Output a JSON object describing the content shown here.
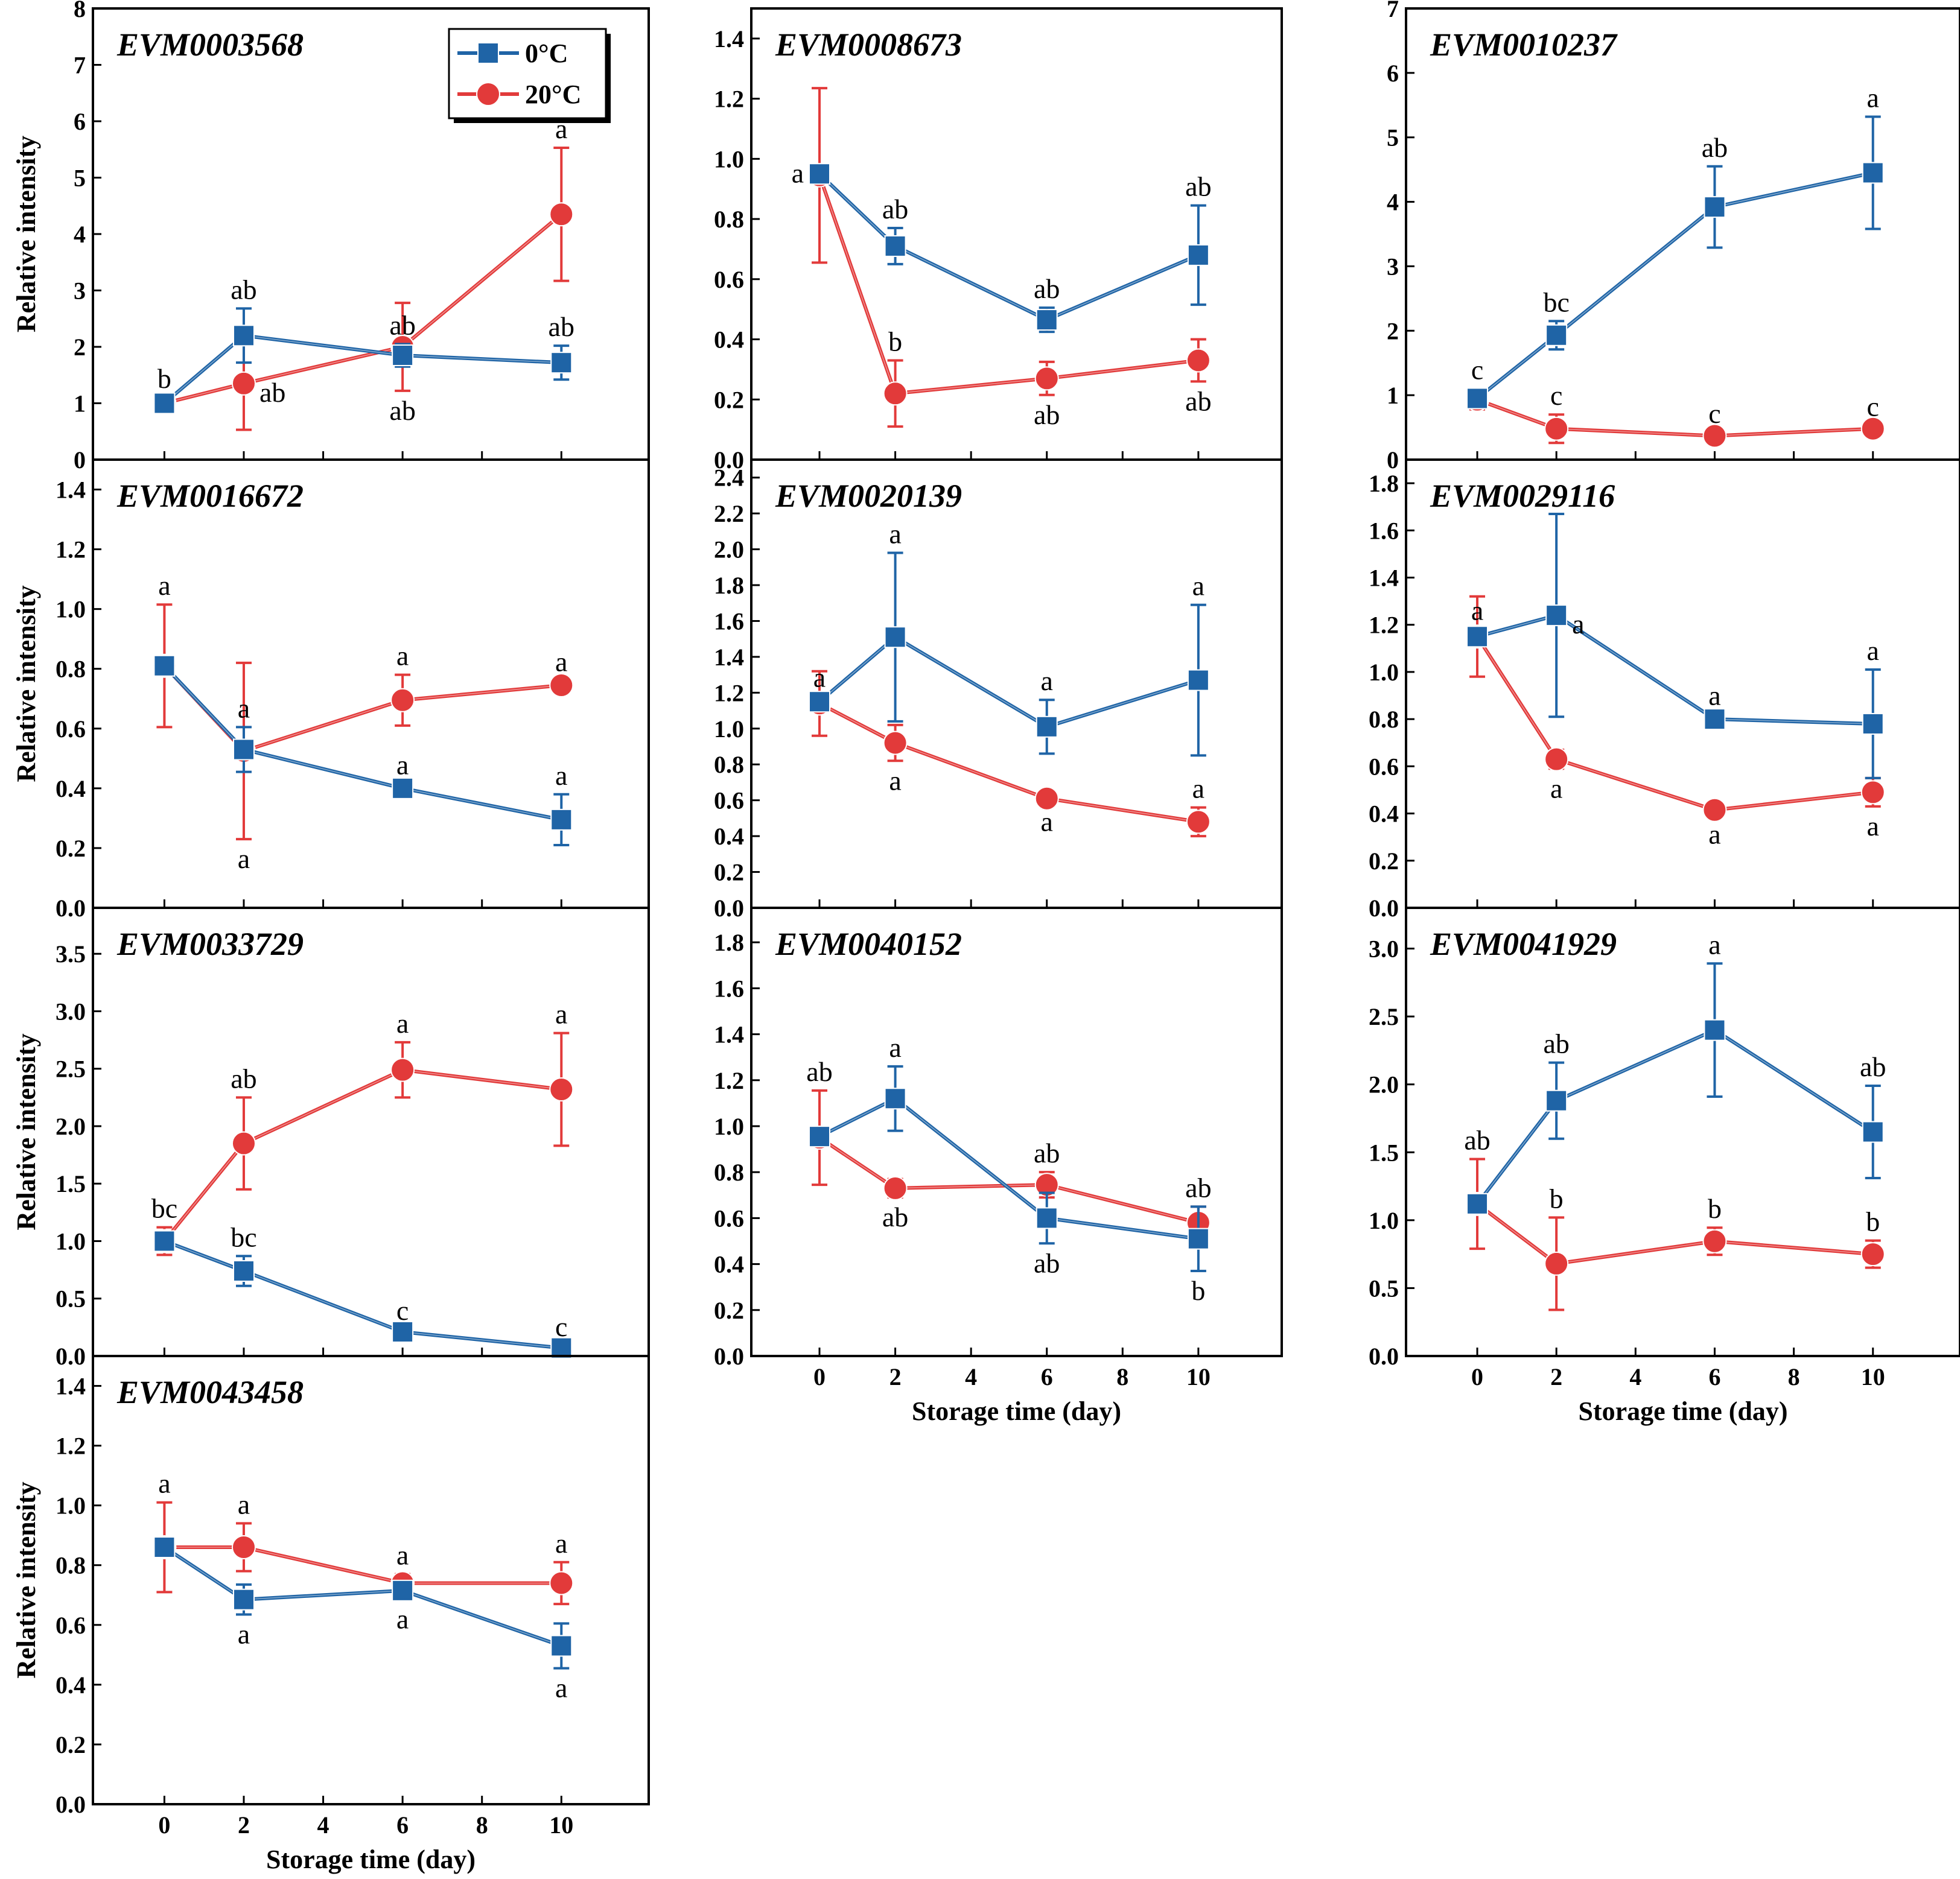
{
  "figure": {
    "xlabel": "Storage time (day)",
    "ylabel": "Relative intensity",
    "x_ticks": [
      0,
      2,
      4,
      6,
      8,
      10
    ],
    "x_tick_labels": [
      "0",
      "2",
      "4",
      "6",
      "8",
      "10"
    ],
    "x": [
      0,
      2,
      6,
      10
    ],
    "legend": [
      {
        "name": "0°C",
        "color": "#1f64a6",
        "marker": "square"
      },
      {
        "name": "20°C",
        "color": "#e23a3a",
        "marker": "circle"
      }
    ],
    "colors": {
      "s0": "#1f64a6",
      "s20": "#e23a3a",
      "axis": "#000000"
    }
  },
  "chart_data": [
    {
      "type": "line",
      "title": "EVM0003568",
      "xlabel": "",
      "ylabel": "Relative intensity",
      "x": [
        0,
        2,
        6,
        10
      ],
      "ylim": [
        0,
        8
      ],
      "yticks": [
        0,
        1,
        2,
        3,
        4,
        5,
        6,
        7,
        8
      ],
      "ytick_labels": [
        "0",
        "1",
        "2",
        "3",
        "4",
        "5",
        "6",
        "7",
        "8"
      ],
      "series": [
        {
          "name": "0°C",
          "values": [
            1.0,
            2.2,
            1.85,
            1.72
          ],
          "errors": [
            0.1,
            0.48,
            0.2,
            0.3
          ],
          "labels": [
            "b",
            "ab",
            "ab",
            "ab"
          ],
          "label_pos": [
            "above",
            "above",
            "above",
            "above"
          ]
        },
        {
          "name": "20°C",
          "values": [
            1.0,
            1.35,
            2.0,
            4.35
          ],
          "errors": [
            0.1,
            0.82,
            0.78,
            1.18
          ],
          "labels": [
            "",
            "ab",
            "ab",
            "a"
          ],
          "label_pos": [
            "above",
            "right",
            "below",
            "above"
          ]
        }
      ]
    },
    {
      "type": "line",
      "title": "EVM0008673",
      "xlabel": "",
      "ylabel": "",
      "x": [
        0,
        2,
        6,
        10
      ],
      "ylim": [
        0,
        1.5
      ],
      "yticks": [
        0,
        0.2,
        0.4,
        0.6,
        0.8,
        1.0,
        1.2,
        1.4
      ],
      "ytick_labels": [
        "0.0",
        "0.2",
        "0.4",
        "0.6",
        "0.8",
        "1.0",
        "1.2",
        "1.4"
      ],
      "series": [
        {
          "name": "0°C",
          "values": [
            0.95,
            0.71,
            0.465,
            0.68
          ],
          "errors": [
            0.02,
            0.06,
            0.04,
            0.165
          ],
          "labels": [
            "a",
            "ab",
            "ab",
            "ab"
          ],
          "label_pos": [
            "left",
            "above",
            "above",
            "above"
          ]
        },
        {
          "name": "20°C",
          "values": [
            0.945,
            0.22,
            0.27,
            0.33
          ],
          "errors": [
            0.29,
            0.11,
            0.055,
            0.07
          ],
          "labels": [
            "",
            "b",
            "ab",
            "ab"
          ],
          "label_pos": [
            "above",
            "above",
            "below",
            "below"
          ]
        }
      ]
    },
    {
      "type": "line",
      "title": "EVM0010237",
      "xlabel": "",
      "ylabel": "",
      "x": [
        0,
        2,
        6,
        10
      ],
      "ylim": [
        0,
        7
      ],
      "yticks": [
        0,
        1,
        2,
        3,
        4,
        5,
        6,
        7
      ],
      "ytick_labels": [
        "0",
        "1",
        "2",
        "3",
        "4",
        "5",
        "6",
        "7"
      ],
      "series": [
        {
          "name": "0°C",
          "values": [
            0.95,
            1.93,
            3.92,
            4.45
          ],
          "errors": [
            0.15,
            0.22,
            0.63,
            0.87
          ],
          "labels": [
            "c",
            "bc",
            "ab",
            "a"
          ],
          "label_pos": [
            "above",
            "above",
            "above",
            "above"
          ]
        },
        {
          "name": "20°C",
          "values": [
            0.93,
            0.48,
            0.37,
            0.48
          ],
          "errors": [
            0.15,
            0.22,
            0.05,
            0.05
          ],
          "labels": [
            "",
            "c",
            "c",
            "c"
          ],
          "label_pos": [
            "above",
            "above",
            "above",
            "above"
          ]
        }
      ]
    },
    {
      "type": "line",
      "title": "EVM0016672",
      "xlabel": "",
      "ylabel": "Relative intensity",
      "x": [
        0,
        2,
        6,
        10
      ],
      "ylim": [
        0,
        1.5
      ],
      "yticks": [
        0,
        0.2,
        0.4,
        0.6,
        0.8,
        1.0,
        1.2,
        1.4
      ],
      "ytick_labels": [
        "0.0",
        "0.2",
        "0.4",
        "0.6",
        "0.8",
        "1.0",
        "1.2",
        "1.4"
      ],
      "series": [
        {
          "name": "0°C",
          "values": [
            0.81,
            0.53,
            0.4,
            0.295
          ],
          "errors": [
            0.02,
            0.075,
            0.015,
            0.085
          ],
          "labels": [
            "",
            "a",
            "a",
            "a"
          ],
          "label_pos": [
            "above",
            "above",
            "above",
            "above"
          ]
        },
        {
          "name": "20°C",
          "values": [
            0.81,
            0.525,
            0.695,
            0.745
          ],
          "errors": [
            0.205,
            0.295,
            0.085,
            0.015
          ],
          "labels": [
            "a",
            "a",
            "a",
            "a"
          ],
          "label_pos": [
            "above",
            "below",
            "above",
            "above"
          ]
        }
      ]
    },
    {
      "type": "line",
      "title": "EVM0020139",
      "xlabel": "",
      "ylabel": "",
      "x": [
        0,
        2,
        6,
        10
      ],
      "ylim": [
        0,
        2.5
      ],
      "yticks": [
        0,
        0.2,
        0.4,
        0.6,
        0.8,
        1.0,
        1.2,
        1.4,
        1.6,
        1.8,
        2.0,
        2.2,
        2.4
      ],
      "ytick_labels": [
        "0.0",
        "0.2",
        "0.4",
        "0.6",
        "0.8",
        "1.0",
        "1.2",
        "1.4",
        "1.6",
        "1.8",
        "2.0",
        "2.2",
        "2.4"
      ],
      "series": [
        {
          "name": "0°C",
          "values": [
            1.15,
            1.51,
            1.01,
            1.27
          ],
          "errors": [
            0.03,
            0.47,
            0.15,
            0.42
          ],
          "labels": [
            "a",
            "a",
            "a",
            "a"
          ],
          "label_pos": [
            "above",
            "above",
            "above",
            "above"
          ]
        },
        {
          "name": "20°C",
          "values": [
            1.14,
            0.92,
            0.61,
            0.48
          ],
          "errors": [
            0.18,
            0.1,
            0.02,
            0.08
          ],
          "labels": [
            "",
            "a",
            "a",
            "a"
          ],
          "label_pos": [
            "above",
            "below",
            "below",
            "above"
          ]
        }
      ]
    },
    {
      "type": "line",
      "title": "EVM0029116",
      "xlabel": "",
      "ylabel": "",
      "x": [
        0,
        2,
        6,
        10
      ],
      "ylim": [
        0,
        1.9
      ],
      "yticks": [
        0,
        0.2,
        0.4,
        0.6,
        0.8,
        1.0,
        1.2,
        1.4,
        1.6,
        1.8
      ],
      "ytick_labels": [
        "0.0",
        "0.2",
        "0.4",
        "0.6",
        "0.8",
        "1.0",
        "1.2",
        "1.4",
        "1.6",
        "1.8"
      ],
      "series": [
        {
          "name": "0°C",
          "values": [
            1.15,
            1.24,
            0.8,
            0.78
          ],
          "errors": [
            0.03,
            0.43,
            0.02,
            0.23
          ],
          "labels": [
            "a",
            "a",
            "a",
            "a"
          ],
          "label_pos": [
            "above",
            "right",
            "above",
            "above"
          ]
        },
        {
          "name": "20°C",
          "values": [
            1.15,
            0.63,
            0.415,
            0.49
          ],
          "errors": [
            0.17,
            0.04,
            0.02,
            0.06
          ],
          "labels": [
            "",
            "a",
            "a",
            "a"
          ],
          "label_pos": [
            "above",
            "below",
            "below",
            "below"
          ]
        }
      ]
    },
    {
      "type": "line",
      "title": "EVM0033729",
      "xlabel": "",
      "ylabel": "Relative intensity",
      "x": [
        0,
        2,
        6,
        10
      ],
      "ylim": [
        0,
        3.9
      ],
      "yticks": [
        0,
        0.5,
        1.0,
        1.5,
        2.0,
        2.5,
        3.0,
        3.5
      ],
      "ytick_labels": [
        "0.0",
        "0.5",
        "1.0",
        "1.5",
        "2.0",
        "2.5",
        "3.0",
        "3.5"
      ],
      "series": [
        {
          "name": "0°C",
          "values": [
            1.0,
            0.74,
            0.21,
            0.07
          ],
          "errors": [
            0.06,
            0.13,
            0.02,
            0.02
          ],
          "labels": [
            "",
            "bc",
            "c",
            "c"
          ],
          "label_pos": [
            "above",
            "above",
            "above",
            "above"
          ]
        },
        {
          "name": "20°C",
          "values": [
            1.0,
            1.85,
            2.49,
            2.32
          ],
          "errors": [
            0.12,
            0.4,
            0.24,
            0.49
          ],
          "labels": [
            "bc",
            "ab",
            "a",
            "a"
          ],
          "label_pos": [
            "above",
            "above",
            "above",
            "above"
          ]
        }
      ]
    },
    {
      "type": "line",
      "title": "EVM0040152",
      "xlabel": "Storage time (day)",
      "ylabel": "",
      "x": [
        0,
        2,
        6,
        10
      ],
      "ylim": [
        0,
        1.95
      ],
      "yticks": [
        0,
        0.2,
        0.4,
        0.6,
        0.8,
        1.0,
        1.2,
        1.4,
        1.6,
        1.8
      ],
      "ytick_labels": [
        "0.0",
        "0.2",
        "0.4",
        "0.6",
        "0.8",
        "1.0",
        "1.2",
        "1.4",
        "1.6",
        "1.8"
      ],
      "series": [
        {
          "name": "0°C",
          "values": [
            0.955,
            1.12,
            0.6,
            0.51
          ],
          "errors": [
            0.02,
            0.14,
            0.11,
            0.14
          ],
          "labels": [
            "",
            "a",
            "ab",
            "b"
          ],
          "label_pos": [
            "above",
            "above",
            "below",
            "below"
          ]
        },
        {
          "name": "20°C",
          "values": [
            0.95,
            0.73,
            0.745,
            0.58
          ],
          "errors": [
            0.205,
            0.04,
            0.055,
            0.07
          ],
          "labels": [
            "ab",
            "ab",
            "ab",
            "ab"
          ],
          "label_pos": [
            "above",
            "below",
            "above",
            "above"
          ]
        }
      ]
    },
    {
      "type": "line",
      "title": "EVM0041929",
      "xlabel": "Storage time (day)",
      "ylabel": "",
      "x": [
        0,
        2,
        6,
        10
      ],
      "ylim": [
        0,
        3.3
      ],
      "yticks": [
        0,
        0.5,
        1.0,
        1.5,
        2.0,
        2.5,
        3.0
      ],
      "ytick_labels": [
        "0.0",
        "0.5",
        "1.0",
        "1.5",
        "2.0",
        "2.5",
        "3.0"
      ],
      "series": [
        {
          "name": "0°C",
          "values": [
            1.12,
            1.88,
            2.4,
            1.65
          ],
          "errors": [
            0.04,
            0.28,
            0.49,
            0.34
          ],
          "labels": [
            "",
            "ab",
            "a",
            "ab"
          ],
          "label_pos": [
            "above",
            "above",
            "above",
            "above"
          ]
        },
        {
          "name": "20°C",
          "values": [
            1.12,
            0.68,
            0.845,
            0.75
          ],
          "errors": [
            0.33,
            0.34,
            0.1,
            0.1
          ],
          "labels": [
            "ab",
            "b",
            "b",
            "b"
          ],
          "label_pos": [
            "above",
            "above",
            "above",
            "above"
          ]
        }
      ]
    },
    {
      "type": "line",
      "title": "EVM0043458",
      "xlabel": "Storage time (day)",
      "ylabel": "Relative intensity",
      "x": [
        0,
        2,
        6,
        10
      ],
      "ylim": [
        0,
        1.5
      ],
      "yticks": [
        0,
        0.2,
        0.4,
        0.6,
        0.8,
        1.0,
        1.2,
        1.4
      ],
      "ytick_labels": [
        "0.0",
        "0.2",
        "0.4",
        "0.6",
        "0.8",
        "1.0",
        "1.2",
        "1.4"
      ],
      "series": [
        {
          "name": "0°C",
          "values": [
            0.86,
            0.685,
            0.715,
            0.53
          ],
          "errors": [
            0.02,
            0.05,
            0.03,
            0.075
          ],
          "labels": [
            "",
            "a",
            "a",
            "a"
          ],
          "label_pos": [
            "above",
            "below",
            "below",
            "below"
          ]
        },
        {
          "name": "20°C",
          "values": [
            0.86,
            0.86,
            0.74,
            0.74
          ],
          "errors": [
            0.15,
            0.08,
            0.03,
            0.07
          ],
          "labels": [
            "a",
            "a",
            "a",
            "a"
          ],
          "label_pos": [
            "above",
            "above",
            "above",
            "above"
          ]
        }
      ]
    }
  ]
}
